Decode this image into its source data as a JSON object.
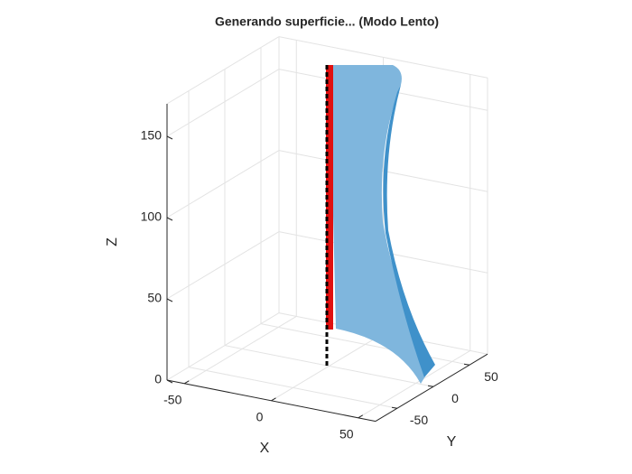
{
  "chart_data": {
    "type": "surface3d",
    "title": "Generando superficie... (Modo Lento)",
    "xlabel": "X",
    "ylabel": "Y",
    "zlabel": "Z",
    "xlim": [
      -60,
      60
    ],
    "ylim": [
      -80,
      75
    ],
    "zlim": [
      0,
      170
    ],
    "xticks": [
      -50,
      0,
      50
    ],
    "yticks": [
      -50,
      0,
      50
    ],
    "zticks": [
      0,
      50,
      100,
      150
    ],
    "grid": true
  }
}
